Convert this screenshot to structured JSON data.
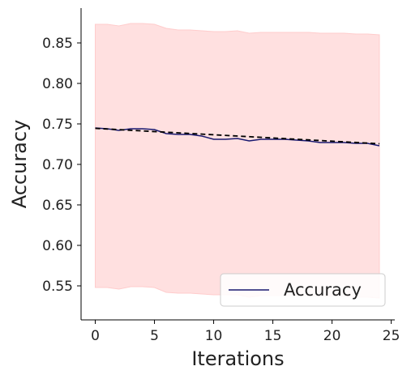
{
  "chart_data": {
    "type": "line",
    "title": "",
    "xlabel": "Iterations",
    "ylabel": "Accuracy",
    "xlim": [
      -1.2,
      25.3
    ],
    "ylim": [
      0.508,
      0.893
    ],
    "xticks": [
      0,
      5,
      10,
      15,
      20,
      25
    ],
    "yticks": [
      0.55,
      0.6,
      0.65,
      0.7,
      0.75,
      0.8,
      0.85
    ],
    "ytick_labels": [
      "0.55",
      "0.60",
      "0.65",
      "0.70",
      "0.75",
      "0.80",
      "0.85"
    ],
    "grid": false,
    "legend_position": "lower-right",
    "series": [
      {
        "name": "Accuracy",
        "color": "#191970",
        "x": [
          0,
          1,
          2,
          3,
          4,
          5,
          6,
          7,
          8,
          9,
          10,
          11,
          12,
          13,
          14,
          15,
          16,
          17,
          18,
          19,
          20,
          21,
          22,
          23,
          24
        ],
        "values": [
          0.745,
          0.744,
          0.742,
          0.744,
          0.744,
          0.743,
          0.738,
          0.737,
          0.737,
          0.735,
          0.731,
          0.731,
          0.732,
          0.729,
          0.731,
          0.731,
          0.731,
          0.73,
          0.729,
          0.727,
          0.727,
          0.727,
          0.726,
          0.726,
          0.723
        ]
      }
    ],
    "band": {
      "color": "#ffcccc",
      "upper": [
        0.873,
        0.873,
        0.871,
        0.874,
        0.874,
        0.873,
        0.868,
        0.866,
        0.866,
        0.865,
        0.864,
        0.864,
        0.865,
        0.862,
        0.863,
        0.863,
        0.863,
        0.863,
        0.863,
        0.862,
        0.862,
        0.862,
        0.861,
        0.861,
        0.86
      ],
      "lower": [
        0.548,
        0.548,
        0.546,
        0.549,
        0.549,
        0.548,
        0.542,
        0.541,
        0.541,
        0.54,
        0.539,
        0.539,
        0.539,
        0.536,
        0.538,
        0.538,
        0.538,
        0.538,
        0.538,
        0.537,
        0.537,
        0.537,
        0.536,
        0.536,
        0.535
      ]
    },
    "trend": {
      "style": "dashed",
      "color": "#000000",
      "x": [
        0,
        24
      ],
      "values": [
        0.7445,
        0.7255
      ]
    }
  }
}
